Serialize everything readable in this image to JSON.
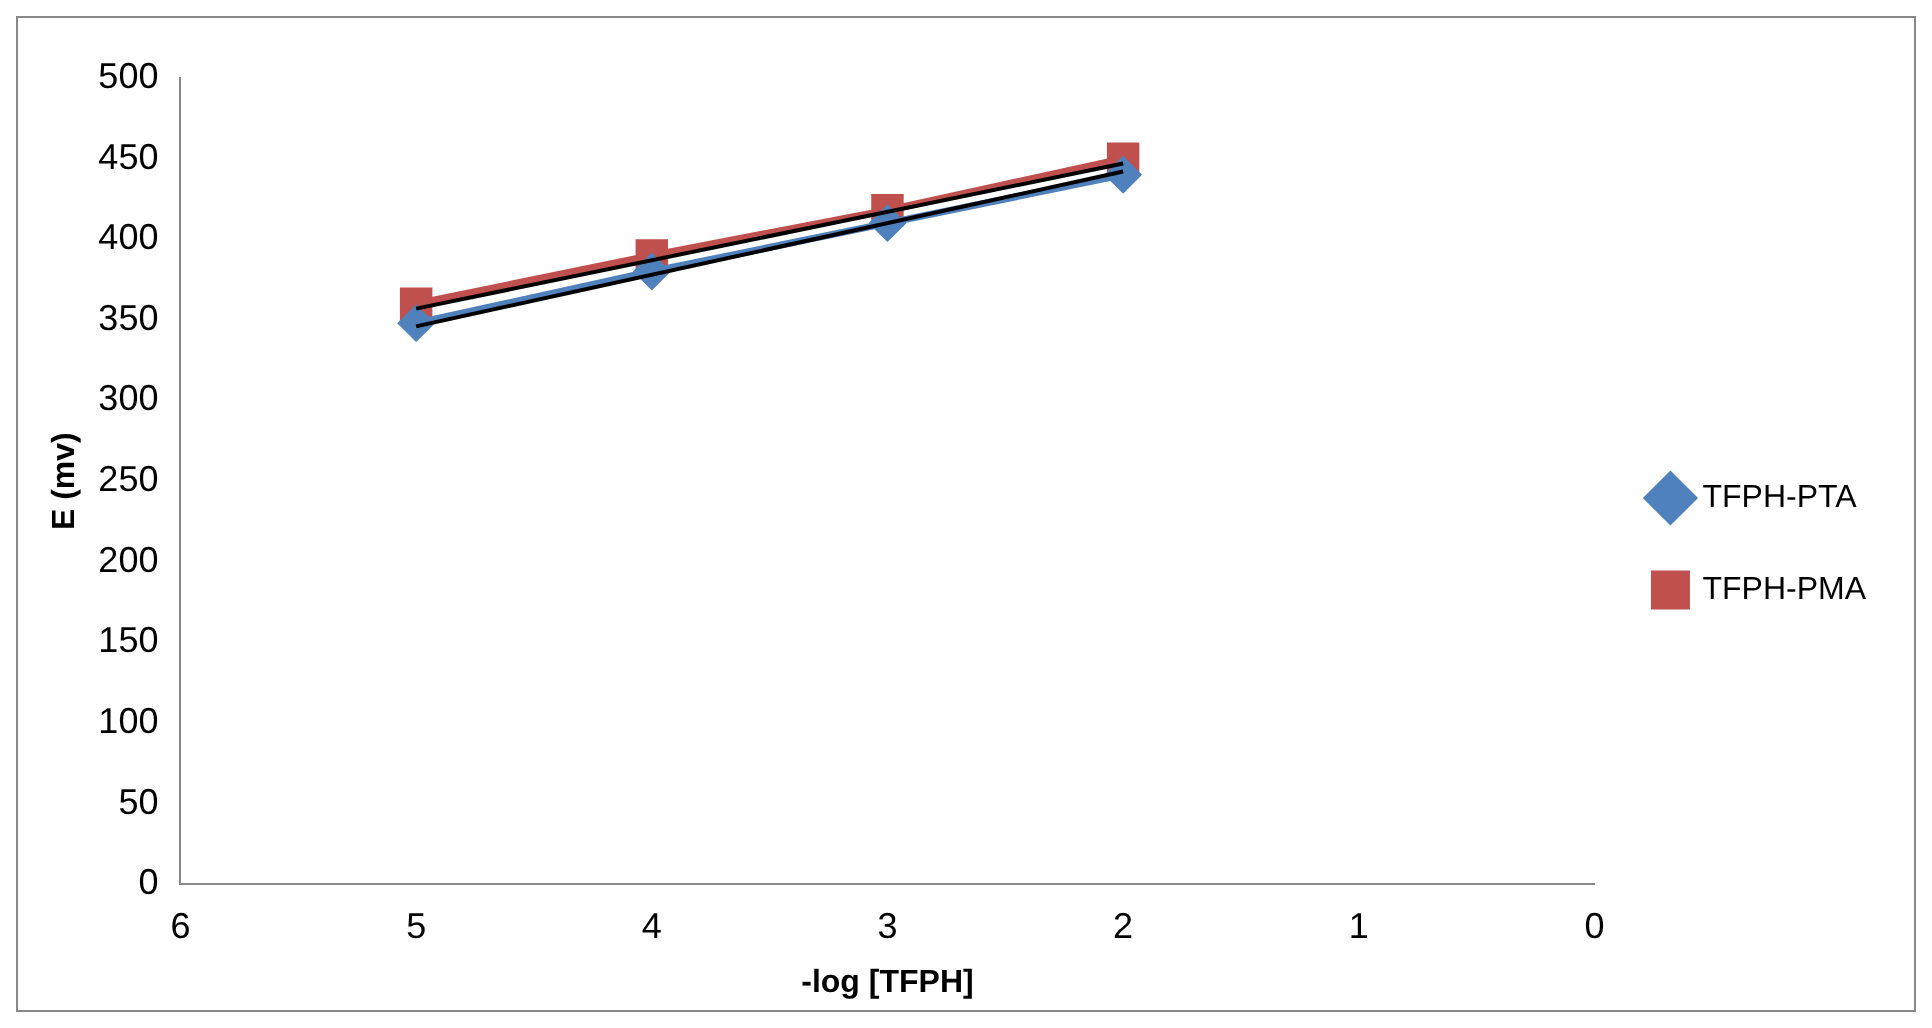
{
  "chart_data": {
    "type": "line",
    "xlabel": "-log [TFPH]",
    "ylabel": "E (mv)",
    "xlim": [
      6,
      0
    ],
    "xticks": [
      6,
      5,
      4,
      3,
      2,
      1,
      0
    ],
    "ylim": [
      0,
      500
    ],
    "yticks": [
      0,
      50,
      100,
      150,
      200,
      250,
      300,
      350,
      400,
      450,
      500
    ],
    "grid": false,
    "legend": "right",
    "line_style": "solid",
    "series": [
      {
        "name": "TFPH-PTA",
        "color": "#4f81bd",
        "marker": "diamond",
        "x": [
          5,
          4,
          3,
          2
        ],
        "values": [
          348,
          380,
          410,
          440
        ]
      },
      {
        "name": "TFPH-PMA",
        "color": "#c0504d",
        "marker": "square",
        "x": [
          5,
          4,
          3,
          2
        ],
        "values": [
          360,
          390,
          418,
          450
        ]
      },
      {
        "color": "#000000",
        "marker": "none",
        "x": [
          5,
          2
        ],
        "values": [
          346,
          442
        ]
      },
      {
        "color": "#000000",
        "marker": "none",
        "x": [
          5,
          2
        ],
        "values": [
          357,
          447
        ]
      }
    ]
  }
}
